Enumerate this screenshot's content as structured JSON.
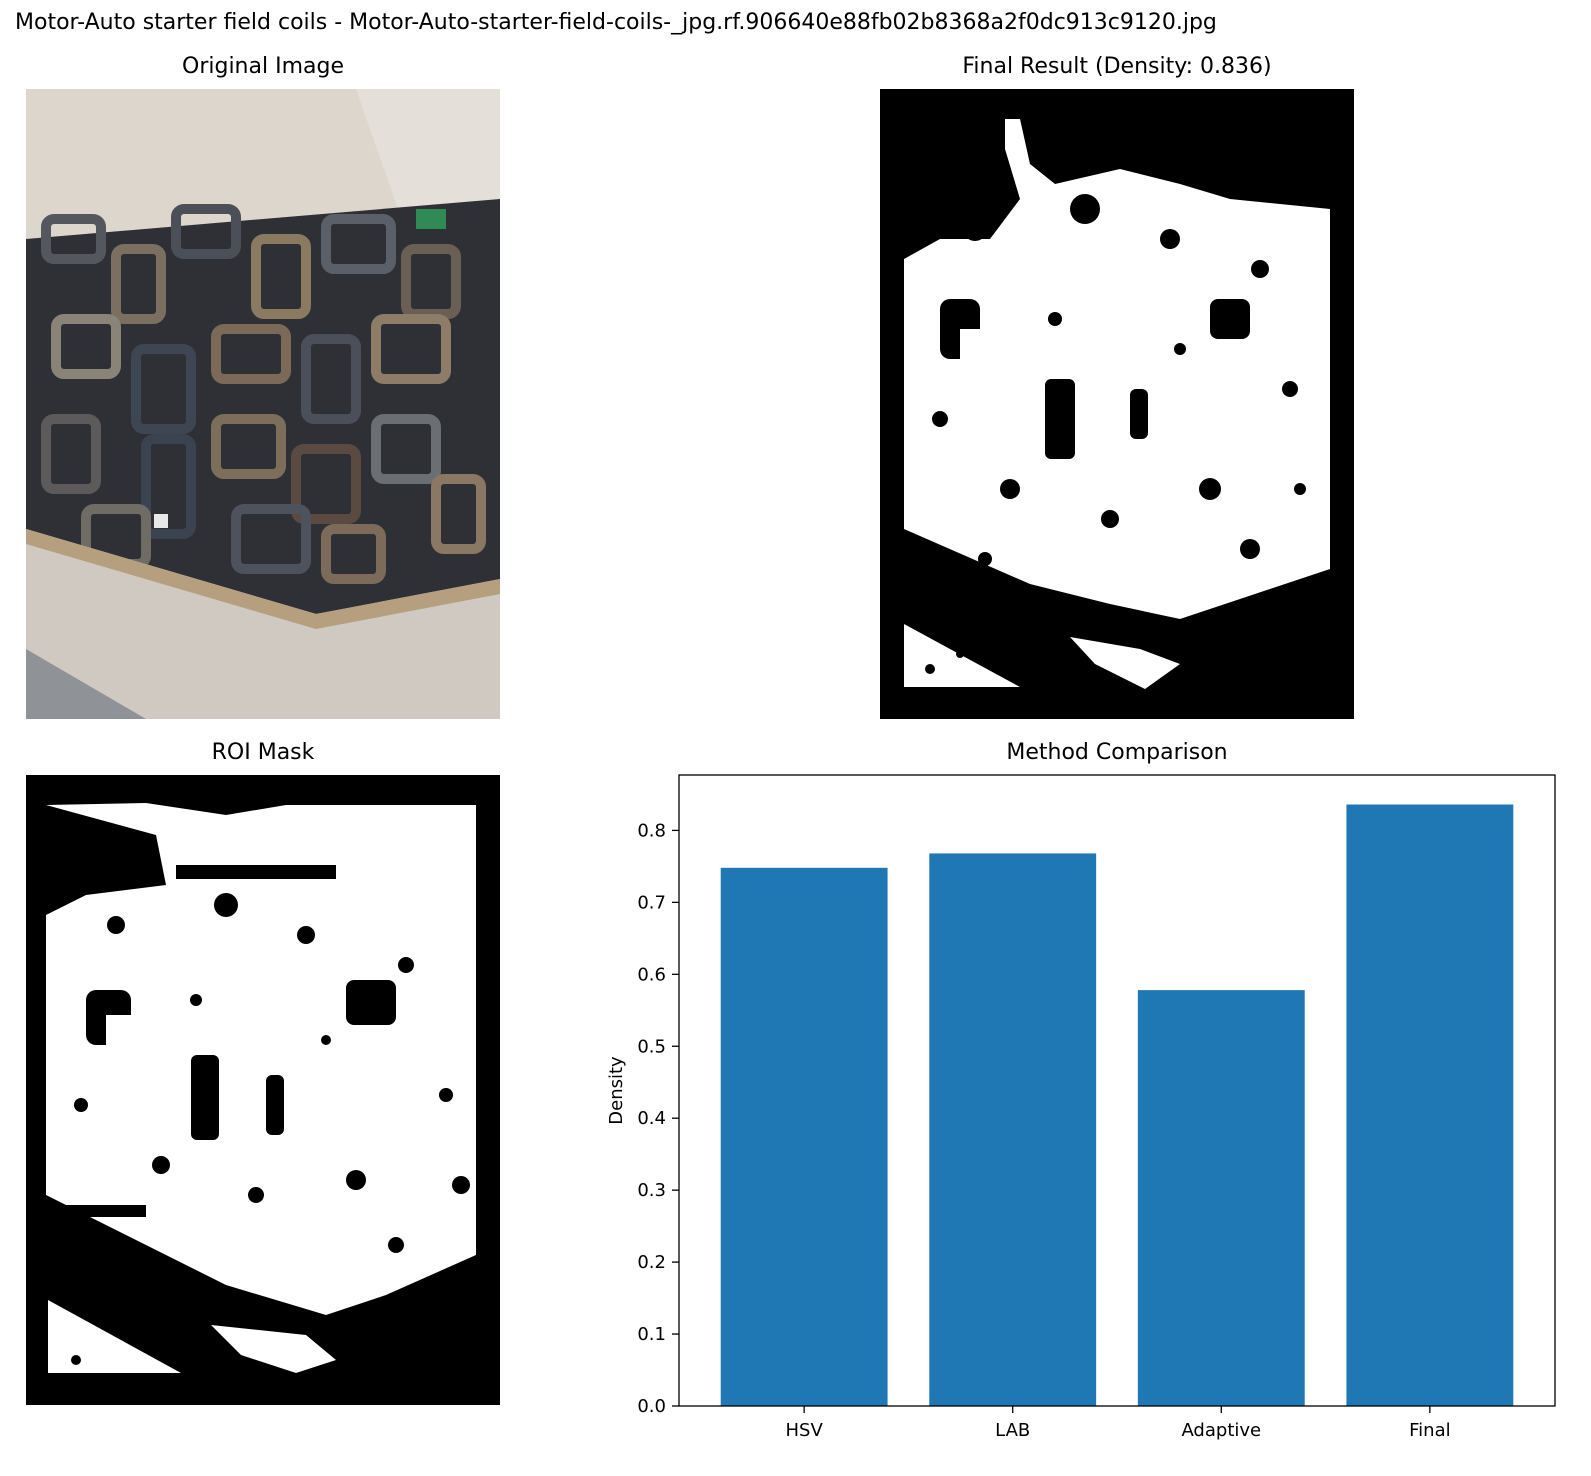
{
  "suptitle": "Motor-Auto starter field coils - Motor-Auto-starter-field-coils-_jpg.rf.906640e88fb02b8368a2f0dc913c9120.jpg",
  "panels": {
    "original": {
      "title": "Original Image"
    },
    "final": {
      "title": "Final Result (Density: 0.836)"
    },
    "roi": {
      "title": "ROI Mask"
    },
    "comparison": {
      "title": "Method Comparison"
    }
  },
  "colors": {
    "bar": "#1f77b4",
    "mask_on": "#ffffff",
    "mask_off": "#000000"
  },
  "chart_data": {
    "type": "bar",
    "title": "Method Comparison",
    "categories": [
      "HSV",
      "LAB",
      "Adaptive",
      "Final"
    ],
    "values": [
      0.748,
      0.768,
      0.578,
      0.836
    ],
    "xlabel": "",
    "ylabel": "Density",
    "ylim": [
      0,
      0.877
    ],
    "yticks": [
      "0.0",
      "0.1",
      "0.2",
      "0.3",
      "0.4",
      "0.5",
      "0.6",
      "0.7",
      "0.8"
    ],
    "grid": false,
    "legend": "none"
  }
}
